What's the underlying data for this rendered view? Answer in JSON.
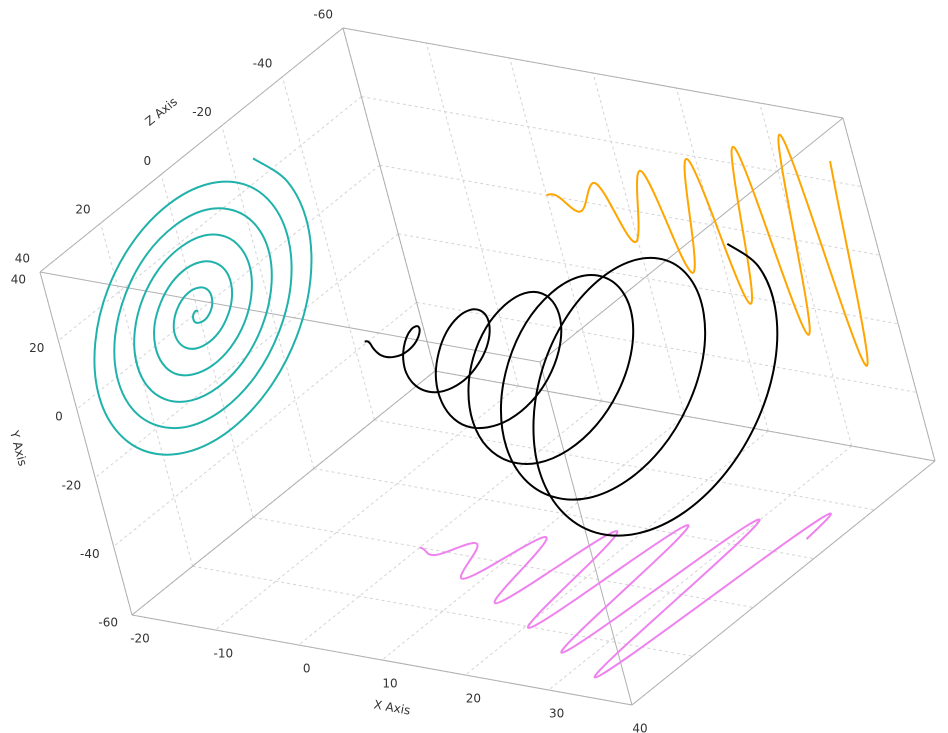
{
  "chart_data": {
    "type": "line3d",
    "xlabel": "X Axis",
    "ylabel": "Y Axis",
    "zlabel": "Z Axis",
    "xlim": [
      -20,
      40
    ],
    "ylim": [
      -60,
      40
    ],
    "zlim": [
      -60,
      40
    ],
    "xticks": [
      -20,
      -10,
      0,
      10,
      20,
      30,
      40
    ],
    "yticks": [
      -60,
      -40,
      -20,
      0,
      20,
      40
    ],
    "zticks": [
      -60,
      -40,
      -20,
      0,
      20,
      40
    ],
    "grid": true,
    "color": "#000000",
    "projections": [
      {
        "plane": "x",
        "color": "#20b2aa"
      },
      {
        "plane": "z",
        "color": "#ffa500"
      },
      {
        "plane": "y",
        "color": "#ee82ee"
      }
    ],
    "x": [
      0,
      0.39,
      0.79,
      1.18,
      1.57,
      1.96,
      2.36,
      2.75,
      3.14,
      3.53,
      3.93,
      4.32,
      4.71,
      5.11,
      5.5,
      5.89,
      6.28,
      6.68,
      7.07,
      7.46,
      7.85,
      8.25,
      8.64,
      9.03,
      9.42,
      9.82,
      10.21,
      10.6,
      11,
      11.39,
      11.78,
      12.17,
      12.57,
      12.96,
      13.35,
      13.74,
      14.14,
      14.53,
      14.92,
      15.32,
      15.71,
      16.1,
      16.49,
      16.89,
      17.28,
      17.67,
      18.06,
      18.46,
      18.85,
      19.24,
      19.63,
      20.03,
      20.42,
      20.81,
      21.21,
      21.6,
      21.99,
      22.38,
      22.78,
      23.17,
      23.56,
      23.95,
      24.35,
      24.74,
      25.13,
      25.53,
      25.92,
      26.31,
      26.7,
      27.1,
      27.49,
      27.88,
      28.27,
      28.67,
      29.06,
      29.45,
      29.85,
      30.24,
      30.63,
      31.02,
      31.42,
      31.81,
      32.2,
      32.59,
      32.99,
      33.38,
      33.77,
      34.16,
      34.56,
      34.95,
      35.34,
      35.74,
      36.13,
      36.52,
      36.91
    ],
    "y": [
      0,
      0.4,
      0.6,
      0.5,
      0,
      -0.8,
      -1.7,
      -2.5,
      -3.1,
      -3.3,
      -2.8,
      -1.7,
      0,
      2.0,
      3.9,
      5.4,
      6.3,
      6.2,
      5.0,
      2.9,
      0,
      -3.2,
      -6.1,
      -8.3,
      -9.4,
      -9.1,
      -7.2,
      -4.1,
      0,
      4.4,
      8.3,
      11.2,
      12.6,
      12.0,
      9.4,
      5.3,
      0,
      -5.6,
      -10.6,
      -14.1,
      -15.7,
      -14.9,
      -11.7,
      -6.5,
      0,
      6.8,
      12.8,
      17.1,
      18.8,
      17.8,
      13.9,
      7.7,
      0,
      -8.0,
      -15.0,
      -20.0,
      -22.0,
      -20.7,
      -16.1,
      -8.9,
      0,
      9.2,
      17.2,
      22.9,
      25.1,
      23.6,
      18.3,
      10.1,
      0,
      -10.4,
      -19.4,
      -25.8,
      -28.3,
      -26.5,
      -20.5,
      -11.3,
      0,
      11.6,
      21.7,
      28.7,
      31.4,
      29.4,
      22.8,
      12.5,
      0,
      -12.8,
      -23.9,
      -31.6,
      -34.6,
      -32.3,
      -25.0,
      -13.7,
      0,
      14.0,
      26.1
    ],
    "z": [
      0,
      0.2,
      0.6,
      1.1,
      1.6,
      1.8,
      1.7,
      1.1,
      0,
      -1.4,
      -2.8,
      -4.0,
      -4.7,
      -4.7,
      -3.9,
      -2.3,
      0,
      2.6,
      5.0,
      6.9,
      7.9,
      7.6,
      6.1,
      3.5,
      0,
      -3.8,
      -7.2,
      -9.8,
      -11.0,
      -10.5,
      -8.3,
      -4.7,
      0,
      5.0,
      9.4,
      12.7,
      14.1,
      13.4,
      10.6,
      5.9,
      0,
      -6.2,
      -11.7,
      -15.6,
      -17.3,
      -16.3,
      -12.8,
      -7.1,
      0,
      7.4,
      13.9,
      18.5,
      20.4,
      19.2,
      15.0,
      8.3,
      0,
      -8.6,
      -16.1,
      -21.4,
      -23.6,
      -22.1,
      -17.2,
      -9.5,
      0,
      9.8,
      18.3,
      24.3,
      26.7,
      25.0,
      19.4,
      10.7,
      0,
      -11.0,
      -20.5,
      -27.2,
      -29.8,
      -27.9,
      -21.7,
      -11.9,
      0,
      12.2,
      22.8,
      30.1,
      33.0,
      30.8,
      23.9,
      13.1,
      0,
      -13.4,
      -25.0,
      -33.0,
      -36.1,
      -33.7,
      -26.1
    ]
  }
}
